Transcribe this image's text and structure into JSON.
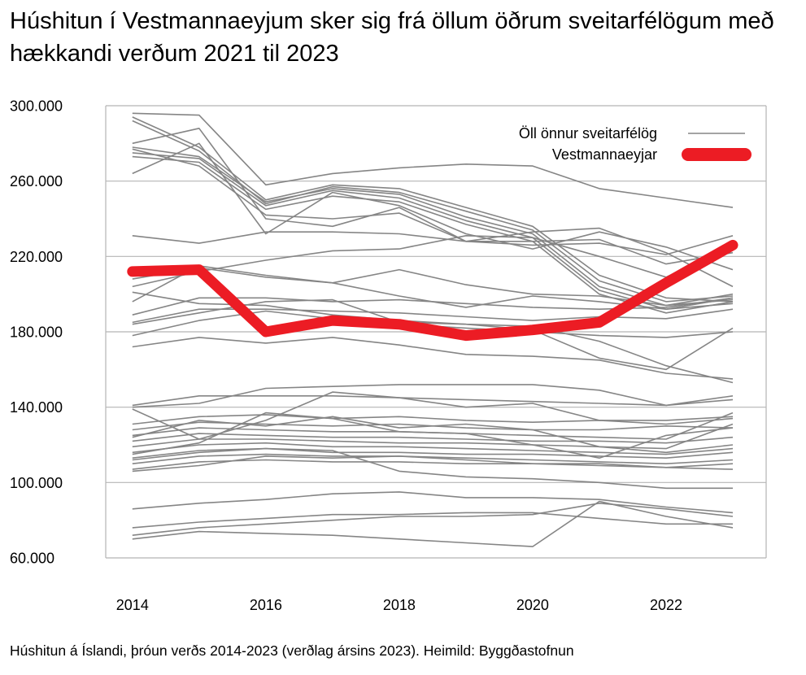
{
  "title": "Húshitun í Vestmannaeyjum sker sig frá öllum öðrum sveitarfélögum með hækkandi verðum 2021 til 2023",
  "source": "Húshitun á Íslandi, þróun verðs 2014-2023 (verðlag ársins 2023). Heimild: Byggðastofnun",
  "colors": {
    "highlight": "#ec1c24",
    "others": "#858585",
    "grid": "#b5b5b5"
  },
  "chart_data": {
    "type": "line",
    "x_tick_labels": [
      "2014",
      "2016",
      "2018",
      "2020",
      "2022"
    ],
    "x_ticks": [
      2014,
      2016,
      2018,
      2020,
      2022
    ],
    "y_tick_labels": [
      "300.000",
      "260.000",
      "220.000",
      "180.000",
      "140.000",
      "100.000",
      "60.000"
    ],
    "y_ticks": [
      300000,
      260000,
      220000,
      180000,
      140000,
      100000,
      60000
    ],
    "xlim": [
      2013.6,
      2023.5
    ],
    "ylim": [
      60000,
      300000
    ],
    "grid": true,
    "legend": {
      "placement": "top-right",
      "entries": [
        {
          "label": "Öll önnur sveitarfélög",
          "style": "others"
        },
        {
          "label": "Vestmannaeyjar",
          "style": "highlight"
        }
      ]
    },
    "x": [
      2014,
      2015,
      2016,
      2017,
      2018,
      2019,
      2020,
      2021,
      2022,
      2023
    ],
    "series": [
      {
        "name": "Vestmannaeyjar",
        "highlight": true,
        "values": [
          212000,
          213000,
          180000,
          186000,
          184000,
          178000,
          181000,
          185000,
          206000,
          226000
        ]
      },
      {
        "values": [
          296000,
          295000,
          258000,
          264000,
          267000,
          269000,
          268000,
          256000,
          251000,
          246000
        ]
      },
      {
        "values": [
          294000,
          278000,
          250000,
          258000,
          256000,
          246000,
          236000,
          210000,
          198000,
          196000
        ]
      },
      {
        "values": [
          292000,
          276000,
          248000,
          257000,
          254000,
          244000,
          234000,
          207000,
          196000,
          199000
        ]
      },
      {
        "values": [
          278000,
          273000,
          249000,
          256000,
          253000,
          241000,
          232000,
          204000,
          194000,
          197000
        ]
      },
      {
        "values": [
          275000,
          272000,
          247000,
          255000,
          251000,
          239000,
          230000,
          202000,
          192000,
          195000
        ]
      },
      {
        "values": [
          273000,
          270000,
          245000,
          252000,
          249000,
          237000,
          228000,
          200000,
          190000,
          196000
        ]
      },
      {
        "values": [
          277000,
          268000,
          242000,
          240000,
          243000,
          228000,
          233000,
          235000,
          222000,
          204000
        ]
      },
      {
        "values": [
          264000,
          280000,
          232000,
          254000,
          247000,
          232000,
          224000,
          233000,
          225000,
          213000
        ]
      },
      {
        "values": [
          280000,
          288000,
          240000,
          236000,
          246000,
          228000,
          226000,
          227000,
          221000,
          231000
        ]
      },
      {
        "values": [
          231000,
          227000,
          233000,
          233000,
          232000,
          228000,
          228000,
          229000,
          216000,
          222000
        ]
      },
      {
        "values": [
          204000,
          212000,
          218000,
          223000,
          224000,
          231000,
          230000,
          220000,
          209000,
          226000
        ]
      },
      {
        "values": [
          208000,
          214000,
          209000,
          206000,
          213000,
          205000,
          200000,
          199000,
          194000,
          200000
        ]
      },
      {
        "values": [
          196000,
          215000,
          210000,
          206000,
          199000,
          193000,
          199000,
          196000,
          192000,
          198000
        ]
      },
      {
        "values": [
          189000,
          198000,
          198000,
          196000,
          197000,
          195000,
          193000,
          192000,
          193000,
          198000
        ]
      },
      {
        "values": [
          185000,
          192000,
          192000,
          191000,
          190000,
          188000,
          186000,
          188000,
          187000,
          192000
        ]
      },
      {
        "values": [
          178000,
          186000,
          191000,
          187000,
          184000,
          182000,
          180000,
          178000,
          177000,
          180000
        ]
      },
      {
        "values": [
          184000,
          190000,
          196000,
          197000,
          185000,
          184000,
          181000,
          166000,
          160000,
          182000
        ]
      },
      {
        "values": [
          172000,
          177000,
          174000,
          177000,
          173000,
          168000,
          167000,
          165000,
          158000,
          155000
        ]
      },
      {
        "values": [
          201000,
          195000,
          194000,
          189000,
          186000,
          184000,
          183000,
          175000,
          162000,
          153000
        ]
      },
      {
        "values": [
          141000,
          146000,
          146000,
          146000,
          145000,
          144000,
          143000,
          142000,
          141000,
          144000
        ]
      },
      {
        "values": [
          140000,
          142000,
          150000,
          151000,
          152000,
          152000,
          152000,
          149000,
          141000,
          146000
        ]
      },
      {
        "values": [
          139000,
          123000,
          133000,
          148000,
          145000,
          140000,
          142000,
          133000,
          133000,
          135000
        ]
      },
      {
        "values": [
          131000,
          135000,
          136000,
          134000,
          135000,
          133000,
          132000,
          133000,
          131000,
          134000
        ]
      },
      {
        "values": [
          128000,
          132000,
          131000,
          130000,
          131000,
          129000,
          128000,
          128000,
          130000,
          129000
        ]
      },
      {
        "values": [
          125000,
          129000,
          128000,
          127000,
          127000,
          126000,
          125000,
          124000,
          123000,
          137000
        ]
      },
      {
        "values": [
          122000,
          126000,
          125000,
          124000,
          124000,
          123000,
          122000,
          122000,
          121000,
          124000
        ]
      },
      {
        "values": [
          119000,
          123000,
          123000,
          122000,
          121000,
          121000,
          120000,
          119000,
          118000,
          131000
        ]
      },
      {
        "values": [
          116000,
          120000,
          121000,
          119000,
          119000,
          118000,
          117000,
          116000,
          115000,
          118000
        ]
      },
      {
        "values": [
          113000,
          117000,
          118000,
          116000,
          116000,
          115000,
          115000,
          114000,
          113000,
          116000
        ]
      },
      {
        "values": [
          110000,
          114000,
          115000,
          114000,
          114000,
          113000,
          112000,
          111000,
          110000,
          112000
        ]
      },
      {
        "values": [
          107000,
          111000,
          112000,
          111000,
          111000,
          110000,
          110000,
          109000,
          108000,
          110000
        ]
      },
      {
        "values": [
          112000,
          116000,
          118000,
          117000,
          106000,
          103000,
          102000,
          100000,
          97000,
          97000
        ]
      },
      {
        "values": [
          106000,
          109000,
          114000,
          113000,
          114000,
          112000,
          110000,
          110000,
          108000,
          107000
        ]
      },
      {
        "values": [
          124000,
          133000,
          130000,
          135000,
          129000,
          131000,
          128000,
          119000,
          116000,
          120000
        ]
      },
      {
        "values": [
          115000,
          121000,
          137000,
          134000,
          127000,
          126000,
          120000,
          113000,
          125000,
          129000
        ]
      },
      {
        "values": [
          86000,
          89000,
          91000,
          94000,
          95000,
          92000,
          92000,
          91000,
          87000,
          84000
        ]
      },
      {
        "values": [
          76000,
          79000,
          81000,
          83000,
          83000,
          84000,
          84000,
          81000,
          78000,
          78000
        ]
      },
      {
        "values": [
          72000,
          76000,
          78000,
          80000,
          82000,
          82000,
          83000,
          89000,
          86000,
          82000
        ]
      },
      {
        "values": [
          70000,
          74000,
          73000,
          72000,
          70000,
          68000,
          66000,
          90000,
          82000,
          76000
        ]
      }
    ]
  }
}
